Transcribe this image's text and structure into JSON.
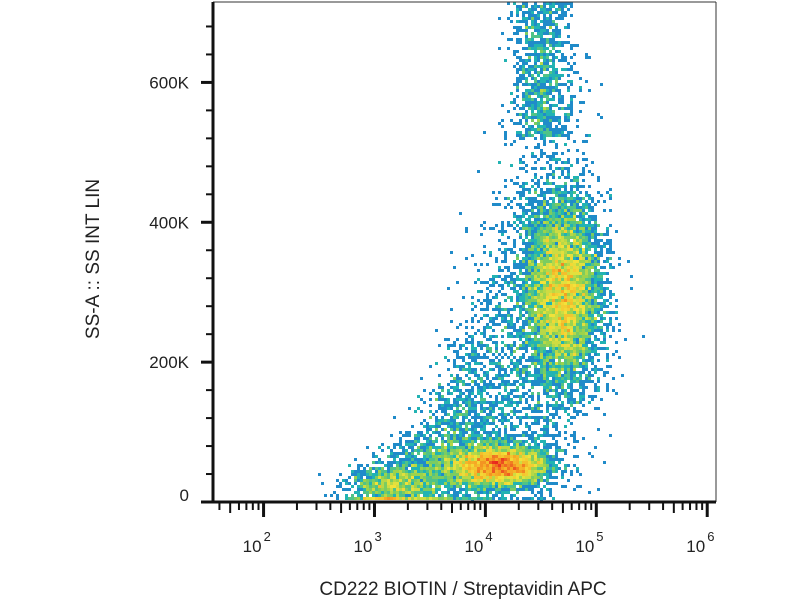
{
  "chart_data": {
    "type": "scatter",
    "subtype": "flow-cytometry-density-plot",
    "title": "",
    "xlabel": "CD222 BIOTIN / Streptavidin APC",
    "ylabel": "SS-A :: SS INT LIN",
    "x_scale": "log",
    "xlim": [
      35,
      1200000
    ],
    "ylim": [
      0,
      715000
    ],
    "x_ticks": [
      {
        "value": 100,
        "base": "10",
        "exp": "2"
      },
      {
        "value": 1000,
        "base": "10",
        "exp": "3"
      },
      {
        "value": 10000,
        "base": "10",
        "exp": "4"
      },
      {
        "value": 100000,
        "base": "10",
        "exp": "5"
      },
      {
        "value": 1000000,
        "base": "10",
        "exp": "6"
      }
    ],
    "y_ticks": [
      {
        "value": 0,
        "label": "0"
      },
      {
        "value": 200000,
        "label": "200K"
      },
      {
        "value": 400000,
        "label": "400K"
      },
      {
        "value": 600000,
        "label": "600K"
      }
    ],
    "grid": false,
    "legend": "none",
    "colormap": [
      "#2a3b9c",
      "#1f7fd0",
      "#22b8b0",
      "#8fd14f",
      "#f2e33a",
      "#f5a623",
      "#e8281f"
    ],
    "populations": [
      {
        "x": 13000,
        "y": 52000,
        "count": 3800,
        "sdx_log": 0.22,
        "sdy": 15000
      },
      {
        "x": 50000,
        "y": 300000,
        "count": 6500,
        "sdx_log": 0.17,
        "sdy": 68000
      },
      {
        "x": 1500,
        "y": 28000,
        "count": 260,
        "sdx_log": 0.22,
        "sdy": 10000
      }
    ]
  }
}
